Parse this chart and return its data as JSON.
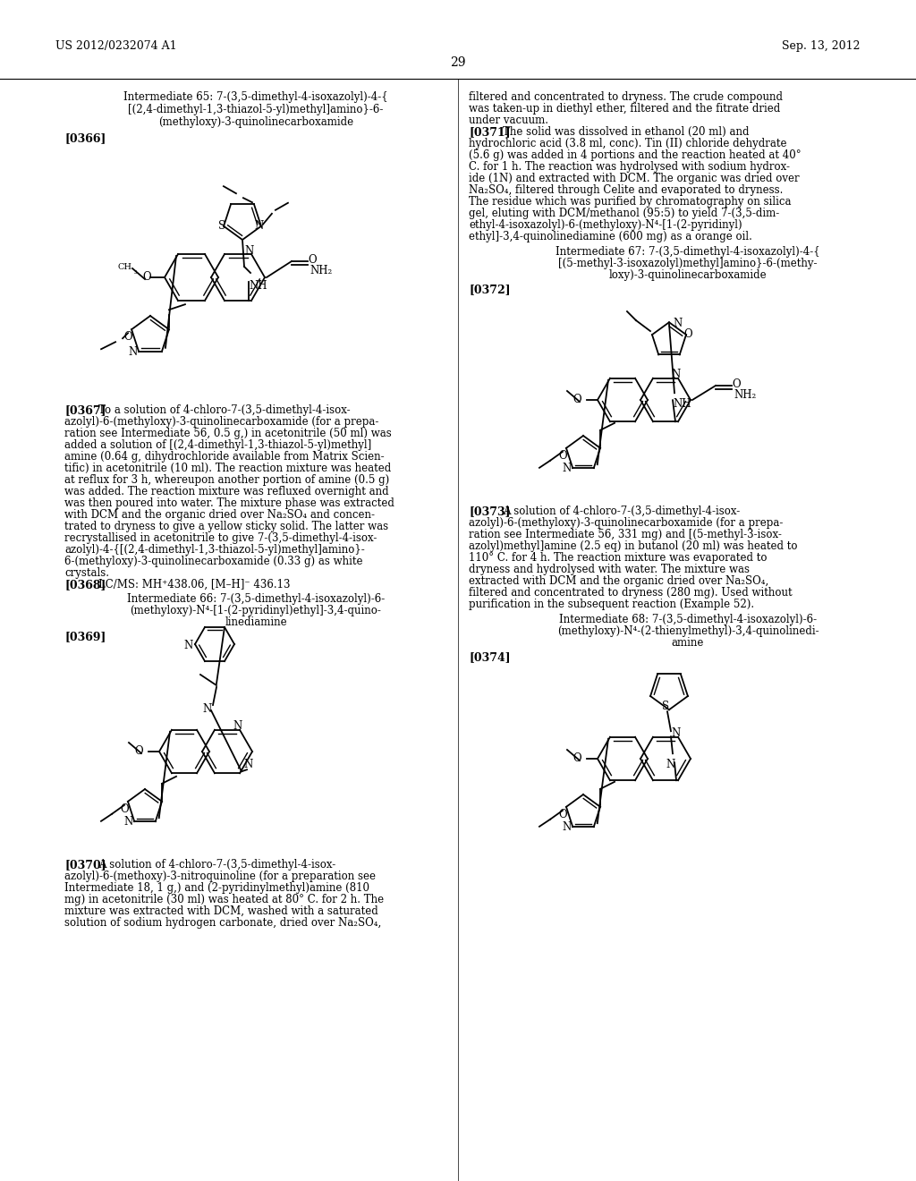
{
  "background_color": "#ffffff",
  "header_left": "US 2012/0232074 A1",
  "header_right": "Sep. 13, 2012",
  "page_number": "29"
}
